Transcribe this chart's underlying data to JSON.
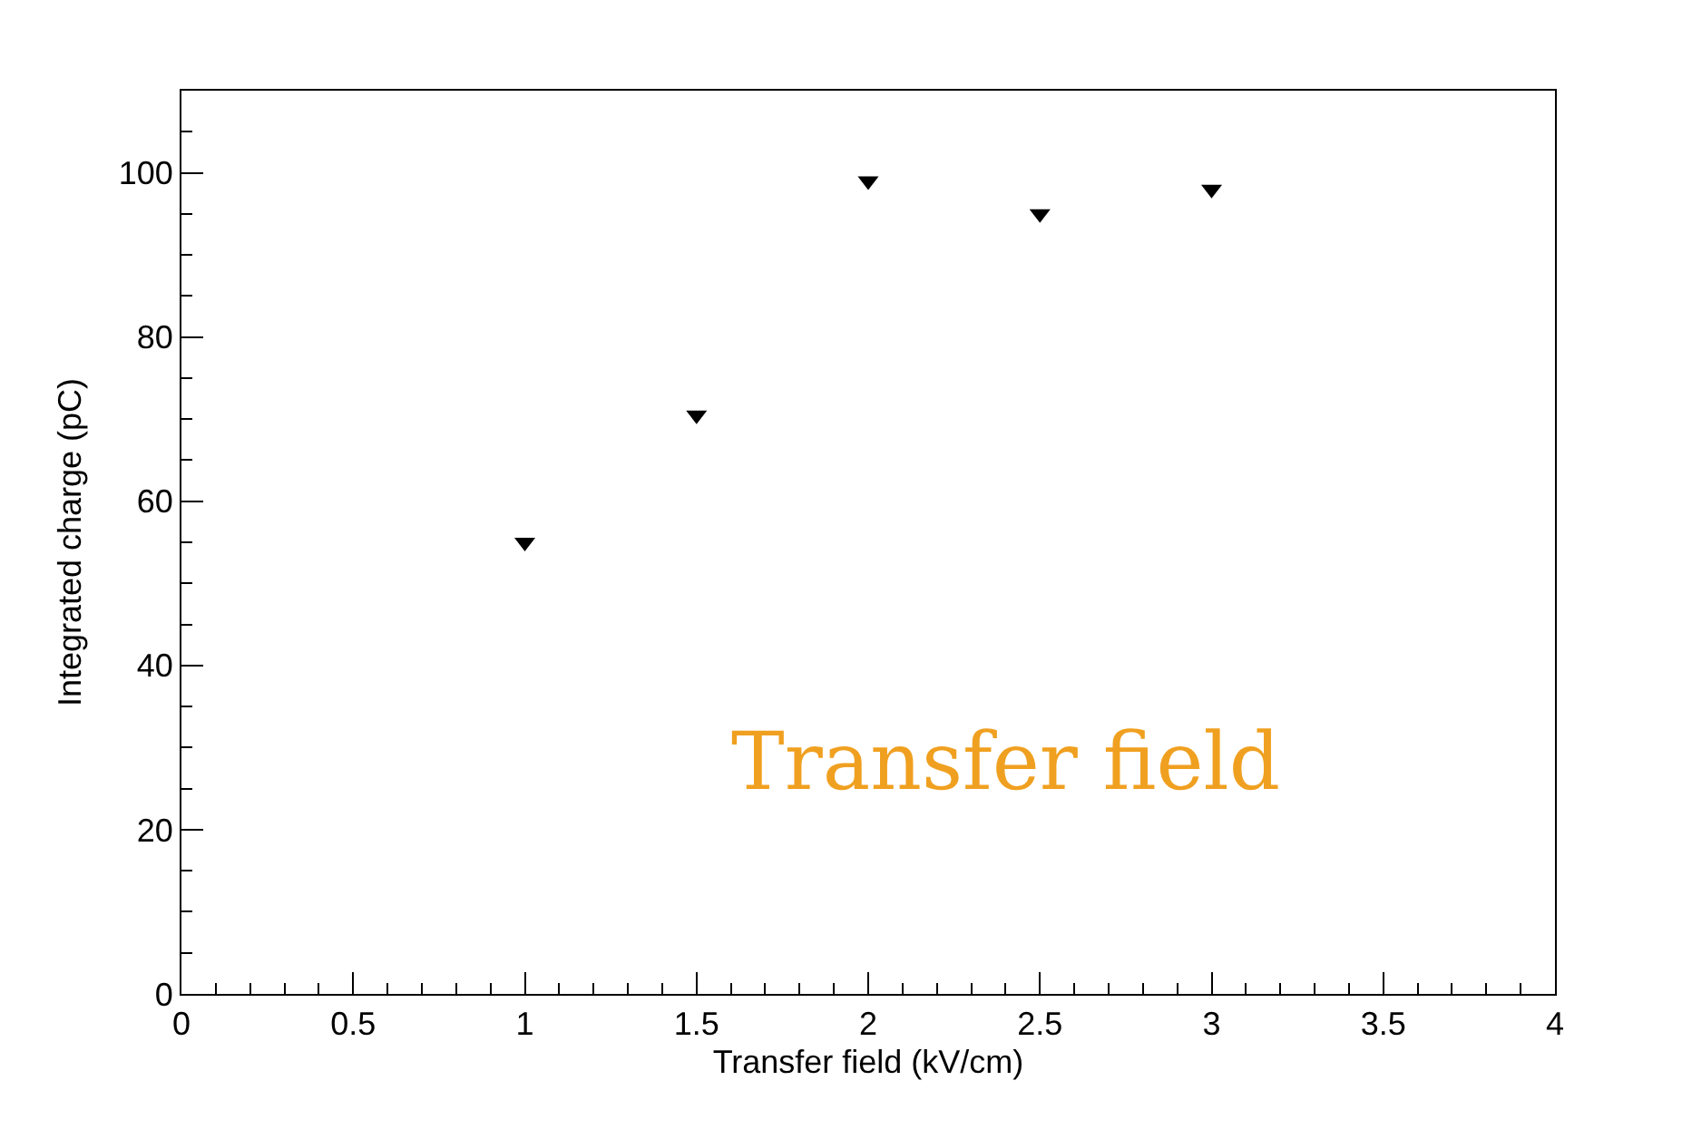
{
  "chart_data": {
    "type": "scatter",
    "xlabel": "Transfer field (kV/cm)",
    "ylabel": "Integrated charge (pC)",
    "x": [
      1,
      1.5,
      2,
      2.5,
      3
    ],
    "series": [
      {
        "color": "#000000",
        "values": [
          55,
          70.5,
          99,
          95,
          98
        ]
      }
    ],
    "marker": "triangle",
    "xlim": [
      0,
      4
    ],
    "ylim": [
      0,
      110
    ],
    "xticks": [
      0,
      0.5,
      1,
      1.5,
      2,
      2.5,
      3,
      3.5,
      4
    ],
    "yticks": [
      0,
      20,
      40,
      60,
      80,
      100
    ],
    "grid": false,
    "legend": false,
    "annotations": [
      "Transfer field"
    ]
  }
}
